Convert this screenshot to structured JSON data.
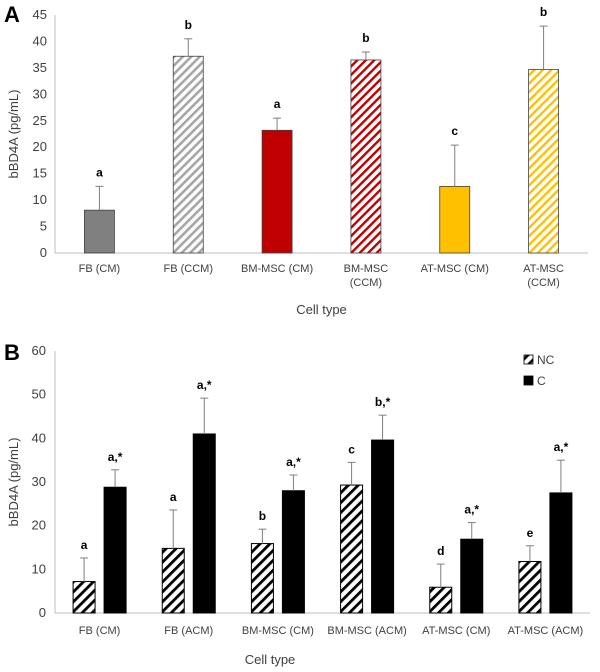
{
  "figure": {
    "panel_labels": [
      "A",
      "B"
    ]
  },
  "chart_data": [
    {
      "panel": "A",
      "type": "bar",
      "title": "",
      "xlabel": "Cell type",
      "ylabel": "bBD4A (pg/mL)",
      "ylim": [
        0,
        45
      ],
      "yticks": [
        0,
        5,
        10,
        15,
        20,
        25,
        30,
        35,
        40,
        45
      ],
      "grid": false,
      "categories": [
        [
          "FB (CM)"
        ],
        [
          "FB (CCM)"
        ],
        [
          "BM-MSC (CM)"
        ],
        [
          "BM-MSC",
          "(CCM)"
        ],
        [
          "AT-MSC (CM)"
        ],
        [
          "AT-MSC",
          "(CCM)"
        ]
      ],
      "values": [
        8.1,
        37.2,
        23.2,
        36.5,
        12.6,
        34.7
      ],
      "errors": [
        4.5,
        3.3,
        2.3,
        1.5,
        7.8,
        8.2
      ],
      "letters": [
        "a",
        "b",
        "a",
        "b",
        "c",
        "b"
      ],
      "fills": [
        "#808080",
        "hatch-gray",
        "#c00000",
        "hatch-red",
        "#ffc000",
        "hatch-yellow"
      ],
      "colors": {
        "gray": "#808080",
        "gray_hatch": "#a6a6a6",
        "red": "#c00000",
        "red_hatch": "#c00000",
        "yellow": "#ffc000",
        "yellow_hatch": "#ffc000"
      }
    },
    {
      "panel": "B",
      "type": "bar",
      "title": "",
      "xlabel": "Cell type",
      "ylabel": "bBD4A (pg/mL)",
      "ylim": [
        0,
        60
      ],
      "yticks": [
        0,
        10,
        20,
        30,
        40,
        50,
        60
      ],
      "grid": false,
      "legend": {
        "placement": "top-right",
        "entries": [
          "NC",
          "C"
        ]
      },
      "categories": [
        "FB (CM)",
        "FB (ACM)",
        "BM-MSC (CM)",
        "BM-MSC (ACM)",
        "AT-MSC (CM)",
        "AT-MSC (ACM)"
      ],
      "series": [
        {
          "name": "NC",
          "values": [
            7.2,
            14.8,
            15.9,
            29.3,
            5.9,
            11.8
          ],
          "errors": [
            5.4,
            8.8,
            3.3,
            5.2,
            5.3,
            3.6
          ],
          "letters": [
            "a",
            "a",
            "b",
            "c",
            "d",
            "e"
          ],
          "fill": "hatch-black"
        },
        {
          "name": "C",
          "values": [
            28.8,
            41.0,
            28.0,
            39.6,
            16.9,
            27.5
          ],
          "errors": [
            4.0,
            8.2,
            3.6,
            5.7,
            3.8,
            7.5
          ],
          "letters": [
            "a,*",
            "a,*",
            "a,*",
            "b,*",
            "a,*",
            "a,*"
          ],
          "fill": "#000000"
        }
      ]
    }
  ]
}
